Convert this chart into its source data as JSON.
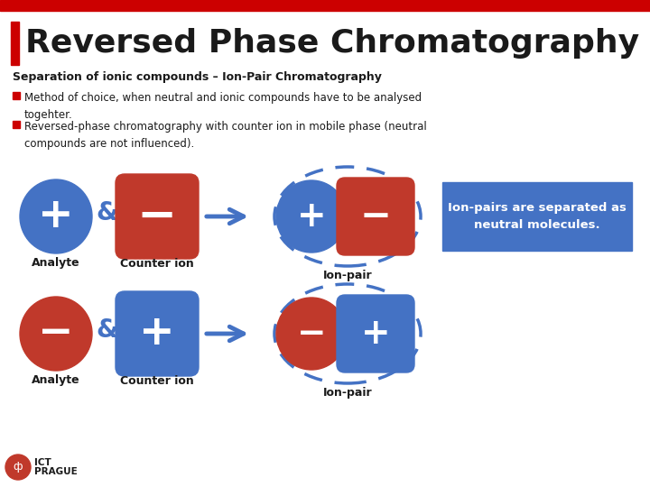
{
  "title": "Reversed Phase Chromatography",
  "title_fontsize": 26,
  "title_color": "#1a1a1a",
  "title_bar_color": "#cc0000",
  "background_color": "#ffffff",
  "top_bar_color": "#cc0000",
  "subtitle": "Separation of ionic compounds – Ion-Pair Chromatography",
  "bullet1": "Method of choice, when neutral and ionic compounds have to be analysed\ntogehter.",
  "bullet2": "Reversed-phase chromatography with counter ion in mobile phase (neutral\ncompounds are not influenced).",
  "bullet_color": "#cc0000",
  "text_color": "#1a1a1a",
  "blue_color": "#4472c4",
  "red_color": "#c0392b",
  "arrow_color": "#4472c4",
  "dashed_circle_color": "#4472c4",
  "box_color": "#4472c4",
  "box_text_color": "#ffffff",
  "box_text": "Ion-pairs are separated as\nneutral molecules.",
  "label_analyte": "Analyte",
  "label_counter_ion": "Counter ion",
  "label_ion_pair": "Ion-pair"
}
